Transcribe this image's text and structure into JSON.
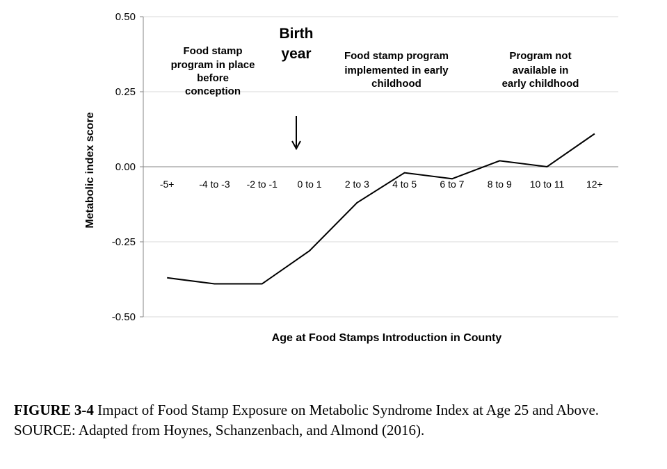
{
  "chart_data": {
    "type": "line",
    "categories": [
      "-5+",
      "-4 to -3",
      "-2 to -1",
      "0 to 1",
      "2 to 3",
      "4 to 5",
      "6 to 7",
      "8 to 9",
      "10 to 11",
      "12+"
    ],
    "values": [
      -0.37,
      -0.39,
      -0.39,
      -0.28,
      -0.12,
      -0.02,
      -0.04,
      0.02,
      0.0,
      0.11
    ],
    "ylim": [
      -0.5,
      0.5
    ],
    "yticks": [
      "0.50",
      "0.25",
      "0.00",
      "-0.25",
      "-0.50"
    ],
    "ytick_values": [
      0.5,
      0.25,
      0.0,
      -0.25,
      -0.5
    ],
    "xlabel": "Age at Food Stamps Introduction in County",
    "ylabel": "Metabolic index score",
    "grid": "horizontal",
    "line_color": "#000000",
    "annotations": {
      "before": [
        "Food stamp",
        "program in place",
        "before",
        "conception"
      ],
      "birth": [
        "Birth",
        "year"
      ],
      "early": [
        "Food stamp program",
        "implemented in early",
        "childhood"
      ],
      "not_available": [
        "Program not",
        "available in",
        "early childhood"
      ]
    }
  },
  "caption": {
    "figure_label": "FIGURE 3-4",
    "title": " Impact of Food Stamp Exposure on Metabolic Syndrome Index at Age 25 and Above.",
    "source": "SOURCE: Adapted from Hoynes, Schanzenbach, and Almond (2016)."
  }
}
